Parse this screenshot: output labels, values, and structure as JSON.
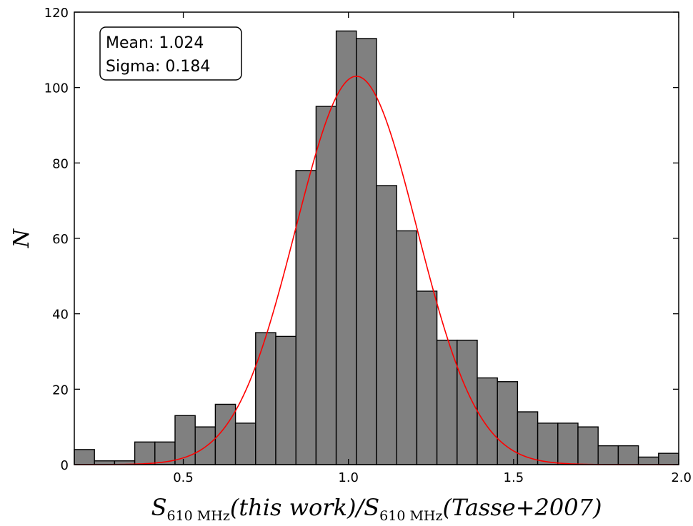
{
  "chart_data": {
    "type": "bar",
    "subtype": "histogram",
    "title": "",
    "xlabel_main": "S",
    "xlabel_sub": "610 MHz",
    "xlabel_part1": "(this work)/",
    "xlabel_part2": "(Tasse+2007)",
    "ylabel": "N",
    "xlim": [
      0.17,
      2.0
    ],
    "ylim": [
      0,
      120
    ],
    "x_ticks": [
      {
        "value": 0.5,
        "label": "0.5"
      },
      {
        "value": 1.0,
        "label": "1.0"
      },
      {
        "value": 1.5,
        "label": "1.5"
      },
      {
        "value": 2.0,
        "label": "2.0"
      }
    ],
    "y_ticks": [
      {
        "value": 0,
        "label": "0"
      },
      {
        "value": 20,
        "label": "20"
      },
      {
        "value": 40,
        "label": "40"
      },
      {
        "value": 60,
        "label": "60"
      },
      {
        "value": 80,
        "label": "80"
      },
      {
        "value": 100,
        "label": "100"
      },
      {
        "value": 120,
        "label": "120"
      }
    ],
    "bin_edges": [
      0.17,
      0.231,
      0.292,
      0.353,
      0.414,
      0.475,
      0.536,
      0.597,
      0.658,
      0.719,
      0.78,
      0.841,
      0.902,
      0.963,
      1.024,
      1.085,
      1.146,
      1.207,
      1.268,
      1.329,
      1.39,
      1.451,
      1.512,
      1.573,
      1.634,
      1.695,
      1.756,
      1.817,
      1.878,
      1.939,
      2.0
    ],
    "values": [
      4,
      1,
      1,
      6,
      6,
      13,
      10,
      16,
      11,
      35,
      34,
      78,
      95,
      115,
      113,
      74,
      62,
      46,
      33,
      33,
      23,
      22,
      14,
      11,
      11,
      10,
      5,
      5,
      2,
      3
    ],
    "bar_color": "#808080",
    "bar_edge_color": "#000000",
    "fit": {
      "type": "gaussian",
      "mean": 1.024,
      "sigma": 0.184,
      "peak": 103,
      "color": "#ff0000"
    },
    "annotation": {
      "mean_text": "Mean: 1.024",
      "sigma_text": "Sigma: 0.184",
      "position": "top-left"
    },
    "grid": false,
    "legend": "none"
  }
}
